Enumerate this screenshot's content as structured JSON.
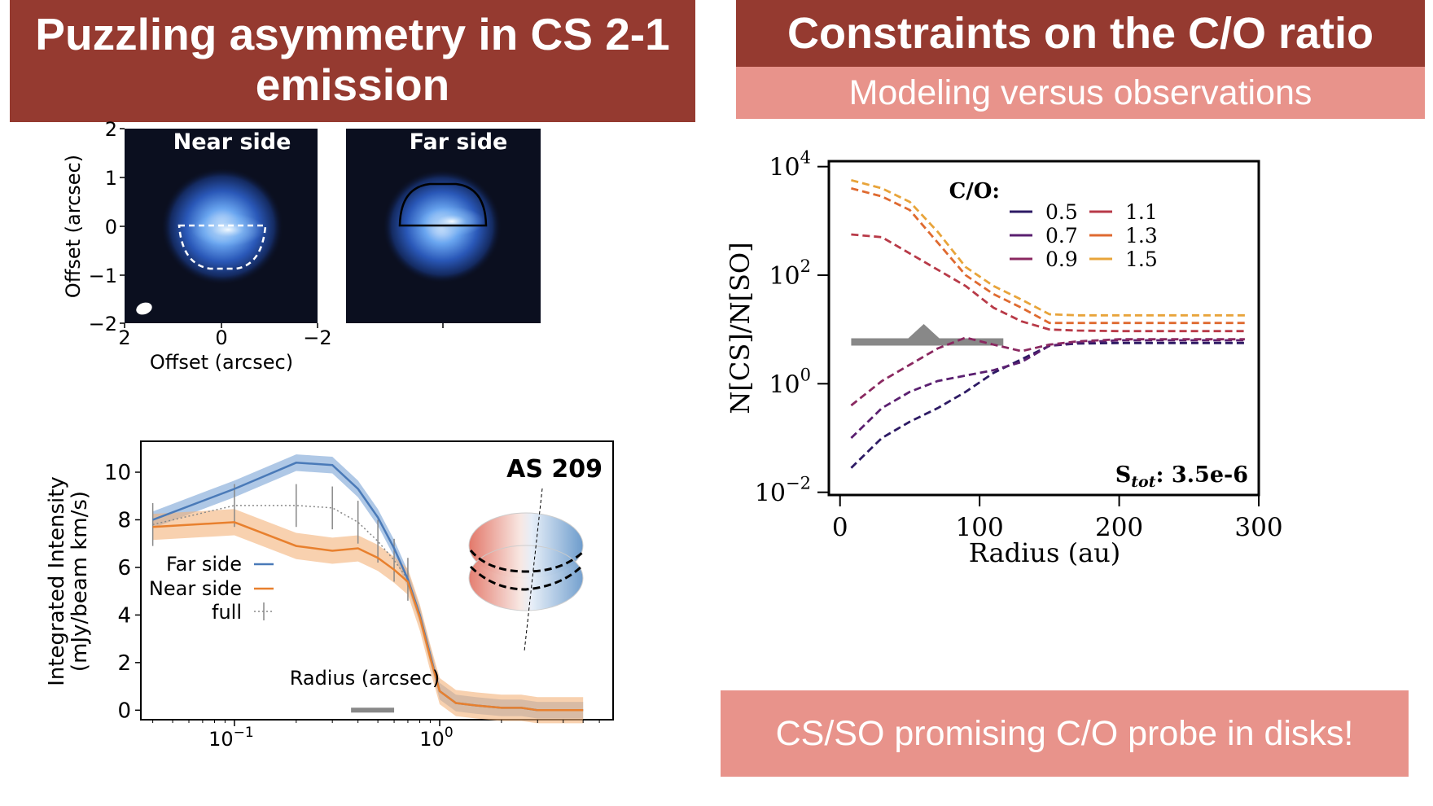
{
  "left_panel": {
    "title": "Puzzling asymmetry in CS 2-1 emission",
    "images": {
      "near_label": "Near side",
      "far_label": "Far side",
      "ylabel": "Offset (arcsec)",
      "xlabel": "Offset (arcsec)",
      "yticks": [
        "2",
        "1",
        "0",
        "−1",
        "−2"
      ],
      "xticks": [
        "2",
        "0",
        "−2"
      ]
    }
  },
  "right_panel": {
    "title": "Constraints on the C/O ratio",
    "subtitle": "Modeling versus observations"
  },
  "bottom_text": "CS/SO promising C/O probe in disks!",
  "colors": {
    "banner_dark": "#953a30",
    "banner_light": "#e8938b",
    "far_side": "#4a7ab8",
    "near_side": "#e8802e"
  },
  "chart_data": [
    {
      "type": "line",
      "annotation": "AS 209",
      "xlabel": "Radius (arcsec)",
      "ylabel": "Integrated Intensity",
      "ylabel2": "(mJy/beam km/s)",
      "xscale": "log",
      "xlim": [
        0.035,
        7
      ],
      "ylim": [
        -0.4,
        11.3
      ],
      "xtick_labels": [
        "10",
        "10"
      ],
      "xtick_exps": [
        "−1",
        "0"
      ],
      "yticks": [
        "0",
        "2",
        "4",
        "6",
        "8",
        "10"
      ],
      "legend_position": "bottom-left",
      "series": [
        {
          "name": "Far side",
          "x": [
            0.04,
            0.1,
            0.2,
            0.3,
            0.4,
            0.5,
            0.6,
            0.7,
            0.8,
            0.9,
            1.0,
            1.2,
            1.5,
            2.0,
            2.5,
            3.0,
            5.0
          ],
          "values": [
            8.0,
            9.3,
            10.4,
            10.3,
            9.3,
            8.1,
            6.8,
            5.5,
            4.0,
            2.3,
            0.8,
            0.3,
            0.2,
            0.1,
            0.1,
            0.0,
            0.0
          ]
        },
        {
          "name": "Near side",
          "x": [
            0.04,
            0.1,
            0.2,
            0.3,
            0.4,
            0.5,
            0.6,
            0.7,
            0.8,
            0.9,
            1.0,
            1.2,
            1.5,
            2.0,
            2.5,
            3.0,
            5.0
          ],
          "values": [
            7.7,
            7.9,
            6.9,
            6.7,
            6.8,
            6.4,
            5.9,
            5.4,
            3.9,
            2.2,
            0.8,
            0.3,
            0.2,
            0.1,
            0.1,
            0.0,
            0.0
          ]
        },
        {
          "name": "full",
          "x": [
            0.04,
            0.1,
            0.2,
            0.3,
            0.4,
            0.5,
            0.6,
            0.7,
            0.8,
            0.9,
            1.0,
            1.2,
            1.5,
            2.0,
            2.5,
            3.0,
            5.0
          ],
          "values": [
            7.8,
            8.6,
            8.6,
            8.5,
            7.9,
            7.1,
            6.3,
            5.5,
            4.0,
            2.2,
            0.8,
            0.3,
            0.2,
            0.1,
            0.1,
            0.0,
            0.0
          ]
        }
      ]
    },
    {
      "type": "line",
      "legend_title": "C/O:",
      "xlabel": "Radius (au)",
      "ylabel": "N[CS]/N[SO]",
      "annotation_main": "S",
      "annotation_sub": "tot",
      "annotation_value": ": 3.5e-6",
      "yscale": "log",
      "xlim": [
        -8,
        300
      ],
      "ylim": [
        -2.05,
        4.1
      ],
      "xticks": [
        "0",
        "100",
        "200",
        "300"
      ],
      "ytick_exps": [
        "−2",
        "0",
        "2",
        "4"
      ],
      "legend_position": "top-right",
      "x": [
        8,
        30,
        50,
        70,
        90,
        110,
        130,
        150,
        170,
        200,
        250,
        290
      ],
      "series": [
        {
          "name": "0.5",
          "values": [
            -1.55,
            -1.0,
            -0.7,
            -0.45,
            -0.15,
            0.2,
            0.45,
            0.7,
            0.74,
            0.75,
            0.75,
            0.75
          ],
          "color": "#2d1a64"
        },
        {
          "name": "0.7",
          "values": [
            -1.0,
            -0.45,
            -0.15,
            0.05,
            0.15,
            0.25,
            0.4,
            0.7,
            0.76,
            0.8,
            0.8,
            0.8
          ],
          "color": "#5a1f70"
        },
        {
          "name": "0.9",
          "values": [
            -0.4,
            0.05,
            0.35,
            0.65,
            0.85,
            0.72,
            0.6,
            0.72,
            0.78,
            0.82,
            0.82,
            0.82
          ],
          "color": "#8a2860"
        },
        {
          "name": "1.1",
          "values": [
            2.75,
            2.7,
            2.4,
            2.1,
            1.8,
            1.4,
            1.15,
            1.0,
            0.98,
            0.97,
            0.97,
            0.97
          ],
          "color": "#b83a48"
        },
        {
          "name": "1.3",
          "values": [
            3.6,
            3.45,
            3.2,
            2.6,
            2.0,
            1.65,
            1.4,
            1.12,
            1.12,
            1.12,
            1.12,
            1.12
          ],
          "color": "#df6a30"
        },
        {
          "name": "1.5",
          "values": [
            3.75,
            3.6,
            3.35,
            2.8,
            2.15,
            1.8,
            1.55,
            1.28,
            1.26,
            1.26,
            1.26,
            1.26
          ],
          "color": "#e8a43a"
        }
      ]
    }
  ]
}
